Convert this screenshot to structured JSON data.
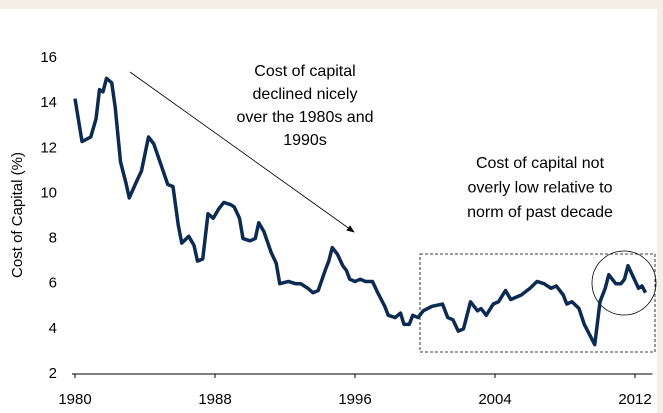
{
  "chart_data": {
    "type": "line",
    "y_label": "Cost of Capital (%)",
    "annotations": [
      [
        "Cost of capital",
        "declined nicely",
        "over the 1980s and",
        "1990s"
      ],
      [
        "Cost of capital not",
        "overly low relative to",
        "norm of past decade"
      ]
    ],
    "x": [
      1980,
      1980.4,
      1980.9,
      1981.2,
      1981.4,
      1981.6,
      1981.8,
      1982.1,
      1982.3,
      1982.6,
      1982.9,
      1983.1,
      1983.5,
      1983.8,
      1984.2,
      1984.5,
      1984.9,
      1985.3,
      1985.6,
      1985.9,
      1986.1,
      1986.5,
      1986.8,
      1987.0,
      1987.3,
      1987.6,
      1987.9,
      1988.2,
      1988.5,
      1988.9,
      1989.1,
      1989.4,
      1989.6,
      1990.0,
      1990.3,
      1990.5,
      1990.8,
      1991.2,
      1991.5,
      1991.7,
      1992.2,
      1992.6,
      1992.9,
      1993.3,
      1993.6,
      1993.9,
      1994.3,
      1994.5,
      1994.7,
      1995.0,
      1995.3,
      1995.5,
      1995.7,
      1996.0,
      1996.3,
      1996.6,
      1997.0,
      1997.3,
      1997.7,
      1997.9,
      1998.3,
      1998.6,
      1998.8,
      1999.1,
      1999.3,
      1999.6,
      1999.9,
      2000.4,
      2001.0,
      2001.3,
      2001.6,
      2001.9,
      2002.2,
      2002.6,
      2003.0,
      2003.2,
      2003.5,
      2003.9,
      2004.2,
      2004.6,
      2004.9,
      2005.5,
      2006.0,
      2006.4,
      2006.8,
      2007.2,
      2007.5,
      2007.9,
      2008.1,
      2008.4,
      2008.8,
      2009.1,
      2009.7,
      2010.0,
      2010.3,
      2010.5,
      2010.9,
      2011.2,
      2011.4,
      2011.6,
      2011.9,
      2012.2,
      2012.4,
      2012.6
    ],
    "values": [
      14.2,
      12.3,
      12.5,
      13.3,
      14.6,
      14.5,
      15.1,
      14.9,
      13.8,
      11.4,
      10.5,
      9.8,
      10.5,
      11.0,
      12.5,
      12.2,
      11.3,
      10.4,
      10.3,
      8.6,
      7.8,
      8.1,
      7.7,
      7.0,
      7.1,
      9.1,
      8.9,
      9.3,
      9.6,
      9.5,
      9.4,
      8.9,
      8.0,
      7.9,
      8.0,
      8.7,
      8.3,
      7.4,
      6.9,
      6.0,
      6.1,
      6.0,
      6.0,
      5.8,
      5.6,
      5.7,
      6.6,
      7.0,
      7.6,
      7.3,
      6.8,
      6.6,
      6.2,
      6.1,
      6.2,
      6.1,
      6.1,
      5.6,
      5.0,
      4.6,
      4.5,
      4.7,
      4.2,
      4.2,
      4.6,
      4.5,
      4.8,
      5.0,
      5.1,
      4.5,
      4.4,
      3.9,
      4.0,
      5.2,
      4.8,
      4.9,
      4.6,
      5.1,
      5.2,
      5.7,
      5.3,
      5.5,
      5.8,
      6.1,
      6.0,
      5.8,
      5.9,
      5.5,
      5.1,
      5.2,
      4.9,
      4.2,
      3.3,
      5.2,
      5.8,
      6.4,
      6.0,
      6.0,
      6.2,
      6.8,
      6.3,
      5.8,
      5.9,
      5.6
    ],
    "color": "#0c2b52",
    "xlim": [
      1980,
      2013
    ],
    "xticks": [
      1980,
      1988,
      1996,
      2004,
      2012
    ],
    "ylim": [
      2,
      16
    ],
    "yticks": [
      2,
      4,
      6,
      8,
      10,
      12,
      14,
      16
    ],
    "grid": false
  }
}
